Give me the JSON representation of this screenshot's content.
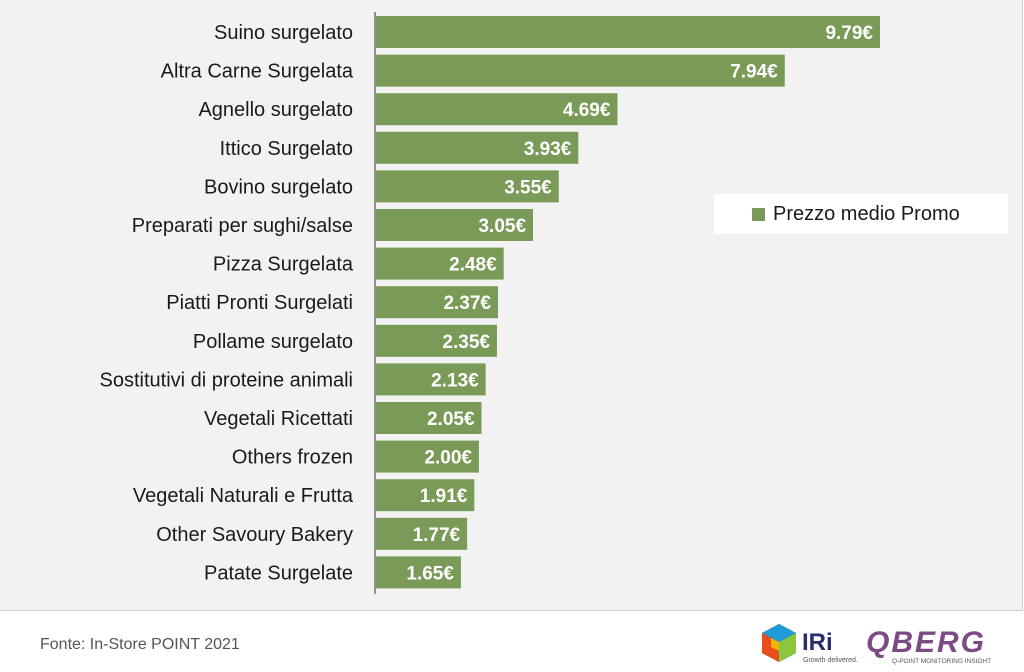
{
  "chart_data": {
    "type": "bar",
    "orientation": "horizontal",
    "categories": [
      "Suino surgelato",
      "Altra Carne Surgelata",
      "Agnello surgelato",
      "Ittico Surgelato",
      "Bovino surgelato",
      "Preparati per sughi/salse",
      "Pizza Surgelata",
      "Piatti Pronti Surgelati",
      "Pollame surgelato",
      "Sostitutivi di proteine animali",
      "Vegetali Ricettati",
      "Others frozen",
      "Vegetali Naturali e Frutta",
      "Other Savoury Bakery",
      "Patate Surgelate"
    ],
    "series": [
      {
        "name": "Prezzo medio Promo",
        "color": "#7a9b57",
        "values": [
          9.79,
          7.94,
          4.69,
          3.93,
          3.55,
          3.05,
          2.48,
          2.37,
          2.35,
          2.13,
          2.05,
          2.0,
          1.91,
          1.77,
          1.65
        ],
        "value_labels": [
          "9.79€",
          "7.94€",
          "4.69€",
          "3.93€",
          "3.55€",
          "3.05€",
          "2.48€",
          "2.37€",
          "2.35€",
          "2.13€",
          "2.05€",
          "2.00€",
          "1.91€",
          "1.77€",
          "1.65€"
        ]
      }
    ],
    "xlim": [
      0,
      12
    ],
    "grid": false,
    "legend_position": "right"
  },
  "legend": {
    "label": "Prezzo medio Promo"
  },
  "footer": {
    "source": "Fonte: In-Store POINT 2021",
    "logo_iri": "IRi",
    "logo_iri_tagline": "Growth delivered.",
    "logo_qberg": "QBERG",
    "logo_qberg_tagline": "Q-POINT MONITORING INSIGHT"
  },
  "colors": {
    "bar": "#7a9b57",
    "panel": "#f2f2f2",
    "qberg": "#7c4a84"
  }
}
